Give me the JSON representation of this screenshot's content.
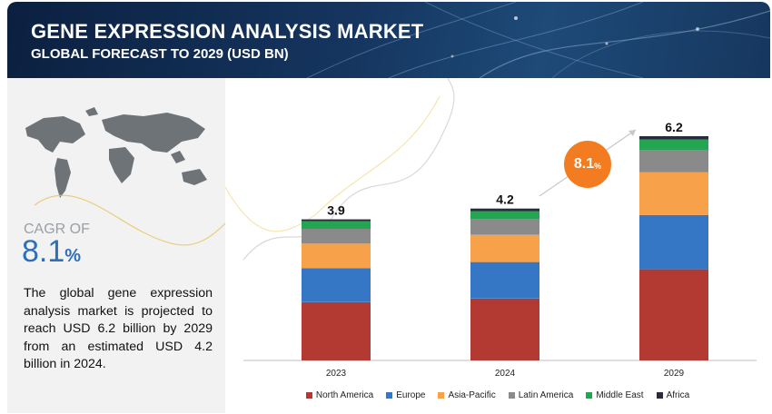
{
  "header": {
    "title": "GENE EXPRESSION ANALYSIS MARKET",
    "subtitle": "GLOBAL FORECAST TO 2029 (USD BN)"
  },
  "left_panel": {
    "cagr_label": "CAGR OF",
    "cagr_value": "8.1",
    "cagr_suffix": "%",
    "summary": "The global gene expression analysis market is projected to reach USD 6.2 billion by 2029 from an estimated USD 4.2 billion in 2024."
  },
  "badge": {
    "value": "8.1",
    "suffix": "%"
  },
  "colors": {
    "header_bg": "#15355f",
    "cagr_blue": "#2f6fb7",
    "badge_orange": "#f47c20"
  },
  "chart_data": {
    "type": "bar",
    "stacked": true,
    "categories": [
      "2023",
      "2024",
      "2029"
    ],
    "totals": [
      3.9,
      4.2,
      6.2
    ],
    "total_labels": [
      "3.9",
      "4.2",
      "6.2"
    ],
    "series": [
      {
        "name": "North America",
        "color": "#b33a33",
        "values": [
          1.61,
          1.71,
          2.52
        ]
      },
      {
        "name": "Europe",
        "color": "#3577c4",
        "values": [
          0.94,
          1.01,
          1.5
        ]
      },
      {
        "name": "Asia-Pacific",
        "color": "#f7a14a",
        "values": [
          0.68,
          0.75,
          1.18
        ]
      },
      {
        "name": "Latin America",
        "color": "#8a8a8a",
        "values": [
          0.41,
          0.44,
          0.62
        ]
      },
      {
        "name": "Middle East",
        "color": "#23a552",
        "values": [
          0.21,
          0.22,
          0.29
        ]
      },
      {
        "name": "Africa",
        "color": "#2b2b40",
        "values": [
          0.05,
          0.07,
          0.09
        ]
      }
    ],
    "ylim": [
      0,
      6.2
    ],
    "grid": false,
    "legend_position": "bottom",
    "growth_annotation": "8.1%"
  }
}
